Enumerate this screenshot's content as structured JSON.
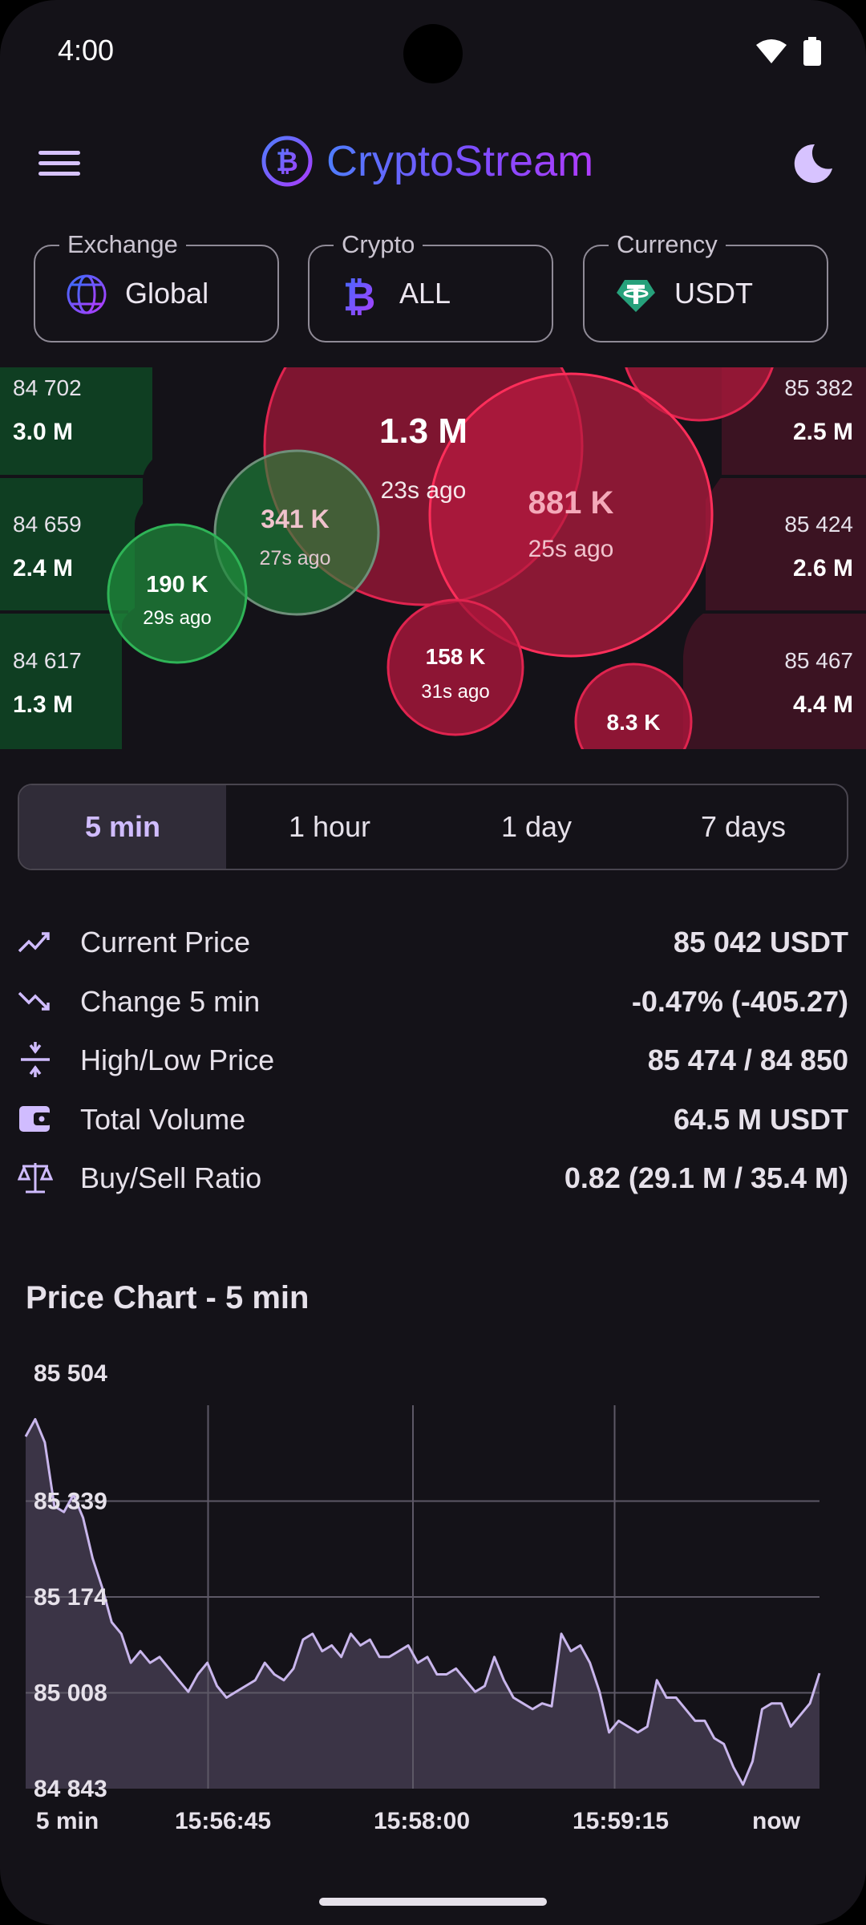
{
  "status": {
    "time": "4:00"
  },
  "app": {
    "title": "CryptoStream"
  },
  "filters": [
    {
      "label": "Exchange",
      "value": "Global",
      "icon": "globe-icon"
    },
    {
      "label": "Crypto",
      "value": "ALL",
      "icon": "bitcoin-icon"
    },
    {
      "label": "Currency",
      "value": "USDT",
      "icon": "tether-icon"
    }
  ],
  "orderbook": {
    "bids": [
      {
        "price": "84 702",
        "volume": "3.0 M"
      },
      {
        "price": "84 659",
        "volume": "2.4 M"
      },
      {
        "price": "84 617",
        "volume": "1.3 M"
      }
    ],
    "asks": [
      {
        "price": "85 382",
        "volume": "2.5 M"
      },
      {
        "price": "85 424",
        "volume": "2.6 M"
      },
      {
        "price": "85 467",
        "volume": "4.4 M"
      }
    ]
  },
  "trades": [
    {
      "amount": "1.3 M",
      "ago": "23s ago",
      "side": "sell"
    },
    {
      "amount": "881 K",
      "ago": "25s ago",
      "side": "sell"
    },
    {
      "amount": "341 K",
      "ago": "27s ago",
      "side": "buy"
    },
    {
      "amount": "190 K",
      "ago": "29s ago",
      "side": "buy"
    },
    {
      "amount": "158 K",
      "ago": "31s ago",
      "side": "sell"
    },
    {
      "amount": "8.3 K",
      "ago": "",
      "side": "sell"
    }
  ],
  "ranges": {
    "items": [
      "5 min",
      "1 hour",
      "1 day",
      "7 days"
    ],
    "selected": "5 min"
  },
  "stats": [
    {
      "label": "Current Price",
      "value": "85 042 USDT",
      "icon": "trending-up-icon"
    },
    {
      "label": "Change 5 min",
      "value": "-0.47% (-405.27)",
      "icon": "trending-down-icon"
    },
    {
      "label": "High/Low Price",
      "value": "85 474 / 84 850",
      "icon": "compress-icon"
    },
    {
      "label": "Total Volume",
      "value": "64.5 M USDT",
      "icon": "wallet-icon"
    },
    {
      "label": "Buy/Sell Ratio",
      "value": "0.82 (29.1 M / 35.4 M)",
      "icon": "balance-scale-icon"
    }
  ],
  "chart_title": "Price Chart - 5 min",
  "colors": {
    "accent": "#d0bcff",
    "buy": "#1f8a3c",
    "sell": "#c8163c",
    "background": "#141218"
  },
  "chart_data": {
    "type": "area",
    "title": "Price Chart - 5 min",
    "xlabel": "",
    "ylabel": "",
    "x_tick_labels": [
      "5 min",
      "15:56:45",
      "15:58:00",
      "15:59:15",
      "now"
    ],
    "y_tick_labels": [
      "85 504",
      "85 339",
      "85 174",
      "85 008",
      "84 843"
    ],
    "ylim": [
      84843,
      85504
    ],
    "grid": true,
    "series": [
      {
        "values": [
          85450,
          85480,
          85440,
          85330,
          85320,
          85350,
          85310,
          85240,
          85190,
          85130,
          85110,
          85060,
          85080,
          85060,
          85070,
          85050,
          85030,
          85010,
          85040,
          85060,
          85020,
          85000,
          85010,
          85020,
          85030,
          85060,
          85040,
          85030,
          85050,
          85100,
          85110,
          85080,
          85090,
          85070,
          85110,
          85090,
          85100,
          85070,
          85070,
          85080,
          85090,
          85060,
          85070,
          85040,
          85040,
          85050,
          85030,
          85010,
          85020,
          85070,
          85030,
          85000,
          84990,
          84980,
          84990,
          84985,
          85110,
          85080,
          85090,
          85060,
          85010,
          84940,
          84960,
          84950,
          84940,
          84950,
          85030,
          85000,
          85000,
          84980,
          84960,
          84960,
          84930,
          84920,
          84880,
          84850,
          84890,
          84980,
          84990,
          84990,
          84950,
          84970,
          84990,
          85042
        ]
      }
    ]
  }
}
